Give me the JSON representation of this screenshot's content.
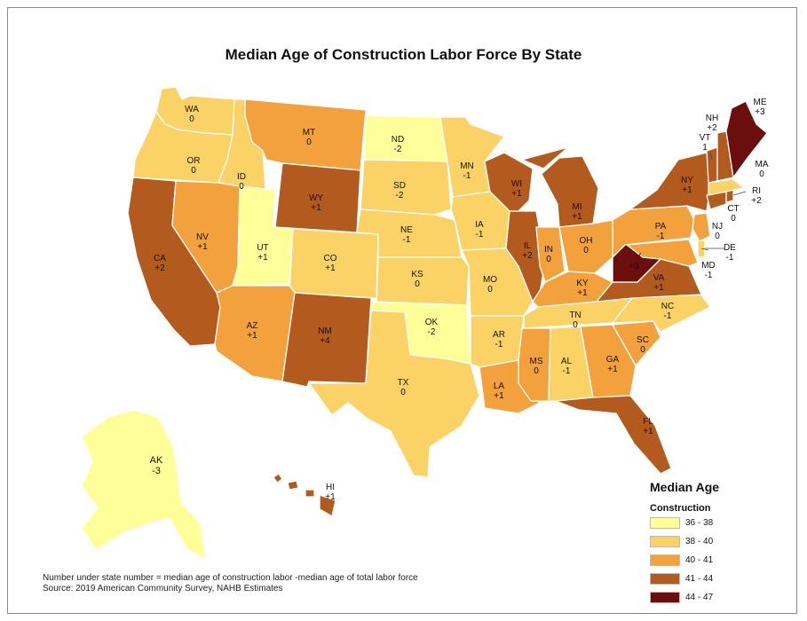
{
  "title": "Median Age of Construction Labor Force By State",
  "legend": {
    "title": "Median Age",
    "subtitle": "Construction",
    "classes": [
      {
        "range": "36 - 38",
        "color": "#ffff99"
      },
      {
        "range": "38 - 40",
        "color": "#fbd266"
      },
      {
        "range": "40 - 41",
        "color": "#f2a13d"
      },
      {
        "range": "41 - 44",
        "color": "#b35a1e"
      },
      {
        "range": "44 - 47",
        "color": "#6b0e0e"
      }
    ]
  },
  "notes": {
    "line1": "Number under state number = median age of construction labor -median age of total labor force",
    "line2": "Source: 2019 American Community Survey, NAHB Estimates"
  },
  "states": {
    "WA": {
      "abbr": "WA",
      "value": "0",
      "color": "#fbd266"
    },
    "OR": {
      "abbr": "OR",
      "value": "0",
      "color": "#fbd266"
    },
    "CA": {
      "abbr": "CA",
      "value": "+2",
      "color": "#b35a1e"
    },
    "ID": {
      "abbr": "ID",
      "value": "0",
      "color": "#fbd266"
    },
    "NV": {
      "abbr": "NV",
      "value": "+1",
      "color": "#f2a13d"
    },
    "MT": {
      "abbr": "MT",
      "value": "0",
      "color": "#f2a13d"
    },
    "WY": {
      "abbr": "WY",
      "value": "+1",
      "color": "#b35a1e"
    },
    "UT": {
      "abbr": "UT",
      "value": "+1",
      "color": "#ffff99"
    },
    "CO": {
      "abbr": "CO",
      "value": "+1",
      "color": "#fbd266"
    },
    "AZ": {
      "abbr": "AZ",
      "value": "+1",
      "color": "#f2a13d"
    },
    "NM": {
      "abbr": "NM",
      "value": "+4",
      "color": "#b35a1e"
    },
    "ND": {
      "abbr": "ND",
      "value": "-2",
      "color": "#ffff99"
    },
    "SD": {
      "abbr": "SD",
      "value": "-2",
      "color": "#fbd266"
    },
    "NE": {
      "abbr": "NE",
      "value": "-1",
      "color": "#fbd266"
    },
    "KS": {
      "abbr": "KS",
      "value": "0",
      "color": "#fbd266"
    },
    "OK": {
      "abbr": "OK",
      "value": "-2",
      "color": "#ffff99"
    },
    "TX": {
      "abbr": "TX",
      "value": "0",
      "color": "#fbd266"
    },
    "MN": {
      "abbr": "MN",
      "value": "-1",
      "color": "#fbd266"
    },
    "IA": {
      "abbr": "IA",
      "value": "-1",
      "color": "#fbd266"
    },
    "MO": {
      "abbr": "MO",
      "value": "0",
      "color": "#fbd266"
    },
    "AR": {
      "abbr": "AR",
      "value": "-1",
      "color": "#fbd266"
    },
    "LA": {
      "abbr": "LA",
      "value": "+1",
      "color": "#f2a13d"
    },
    "WI": {
      "abbr": "WI",
      "value": "+1",
      "color": "#b35a1e"
    },
    "IL": {
      "abbr": "IL",
      "value": "+2",
      "color": "#b35a1e"
    },
    "MI": {
      "abbr": "MI",
      "value": "+1",
      "color": "#b35a1e"
    },
    "IN": {
      "abbr": "IN",
      "value": "0",
      "color": "#f2a13d"
    },
    "OH": {
      "abbr": "OH",
      "value": "0",
      "color": "#f2a13d"
    },
    "KY": {
      "abbr": "KY",
      "value": "+1",
      "color": "#f2a13d"
    },
    "TN": {
      "abbr": "TN",
      "value": "0",
      "color": "#fbd266"
    },
    "MS": {
      "abbr": "MS",
      "value": "0",
      "color": "#f2a13d"
    },
    "AL": {
      "abbr": "AL",
      "value": "-1",
      "color": "#fbd266"
    },
    "GA": {
      "abbr": "GA",
      "value": "+1",
      "color": "#f2a13d"
    },
    "FL": {
      "abbr": "FL",
      "value": "+1",
      "color": "#b35a1e"
    },
    "SC": {
      "abbr": "SC",
      "value": "0",
      "color": "#f2a13d"
    },
    "NC": {
      "abbr": "NC",
      "value": "-1",
      "color": "#fbd266"
    },
    "VA": {
      "abbr": "VA",
      "value": "+1",
      "color": "#b35a1e"
    },
    "WV": {
      "abbr": "WV",
      "value": "+3",
      "color": "#6b0e0e"
    },
    "PA": {
      "abbr": "PA",
      "value": "-1",
      "color": "#f2a13d"
    },
    "NY": {
      "abbr": "NY",
      "value": "+1",
      "color": "#b35a1e"
    },
    "MD": {
      "abbr": "MD",
      "value": "-1",
      "color": "#f2a13d"
    },
    "DE": {
      "abbr": "DE",
      "value": "-1",
      "color": "#fbd266"
    },
    "NJ": {
      "abbr": "NJ",
      "value": "0",
      "color": "#f2a13d"
    },
    "CT": {
      "abbr": "CT",
      "value": "0",
      "color": "#b35a1e"
    },
    "RI": {
      "abbr": "RI",
      "value": "+2",
      "color": "#b35a1e"
    },
    "MA": {
      "abbr": "MA",
      "value": "0",
      "color": "#fbd266"
    },
    "VT": {
      "abbr": "VT",
      "value": "1",
      "color": "#b35a1e"
    },
    "NH": {
      "abbr": "NH",
      "value": "+2",
      "color": "#b35a1e"
    },
    "ME": {
      "abbr": "ME",
      "value": "+3",
      "color": "#6b0e0e"
    },
    "AK": {
      "abbr": "AK",
      "value": "-3",
      "color": "#ffff99"
    },
    "HI": {
      "abbr": "HI",
      "value": "+1",
      "color": "#b35a1e"
    }
  }
}
